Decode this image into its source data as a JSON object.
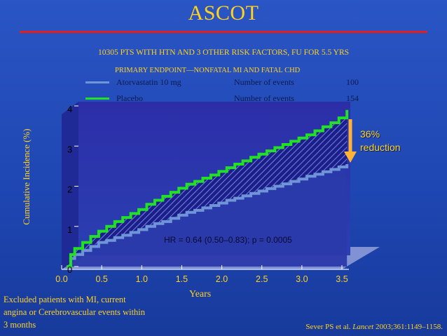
{
  "title": "ASCOT",
  "subtitle": "10305 PTS WITH HTN AND 3 OTHER RISK FACTORS, FU FOR 5.5 YRS",
  "endpoint": "PRIMARY ENDPOINT—NONFATAL MI AND FATAL CHD",
  "legend": [
    {
      "name": "Atorvastatin 10 mg",
      "events_label": "Number of events",
      "events": "100",
      "color": "#6f95d8"
    },
    {
      "name": "Placebo",
      "events_label": "Number of events",
      "events": "154",
      "color": "#22e023"
    }
  ],
  "reduction": {
    "line1": "36%",
    "line2": "reduction"
  },
  "hr_text": "HR = 0.64 (0.50–0.83); p = 0.0005",
  "footnote": {
    "line1": "Excluded patients with MI, current",
    "line2": "angina or Cerebrovascular events within",
    "line3": "3 months"
  },
  "citation": {
    "authors": "Sever PS et al. ",
    "journal": "Lancet",
    "ref": " 2003;361:1149–1158."
  },
  "chart_data": {
    "type": "line",
    "xlabel": "Years",
    "ylabel": "Cumulative Incidence (%)",
    "xlim": [
      0,
      3.5
    ],
    "ylim": [
      0,
      4
    ],
    "x_ticks": [
      "0.0",
      "0.5",
      "1.0",
      "1.5",
      "2.0",
      "2.5",
      "3.0",
      "3.5"
    ],
    "y_ticks": [
      "0",
      "1",
      "2",
      "3",
      "4"
    ],
    "series": [
      {
        "name": "Atorvastatin 10 mg",
        "x": [
          0,
          0.05,
          0.1,
          0.2,
          0.3,
          0.4,
          0.5,
          0.6,
          0.7,
          0.8,
          0.9,
          1.0,
          1.1,
          1.2,
          1.3,
          1.4,
          1.5,
          1.6,
          1.7,
          1.8,
          1.9,
          2.0,
          2.1,
          2.2,
          2.3,
          2.4,
          2.5,
          2.6,
          2.7,
          2.8,
          2.9,
          3.0,
          3.1,
          3.2,
          3.3,
          3.4,
          3.5
        ],
        "values": [
          0.0,
          0.2,
          0.3,
          0.4,
          0.5,
          0.6,
          0.65,
          0.72,
          0.78,
          0.85,
          0.92,
          1.0,
          1.07,
          1.12,
          1.2,
          1.28,
          1.35,
          1.4,
          1.46,
          1.52,
          1.58,
          1.65,
          1.7,
          1.76,
          1.82,
          1.88,
          1.94,
          2.0,
          2.06,
          2.12,
          2.18,
          2.25,
          2.3,
          2.36,
          2.42,
          2.48,
          2.55
        ]
      },
      {
        "name": "Placebo",
        "x": [
          0,
          0.05,
          0.1,
          0.2,
          0.3,
          0.4,
          0.5,
          0.6,
          0.7,
          0.8,
          0.9,
          1.0,
          1.1,
          1.2,
          1.3,
          1.4,
          1.5,
          1.6,
          1.7,
          1.8,
          1.9,
          2.0,
          2.1,
          2.2,
          2.3,
          2.4,
          2.5,
          2.6,
          2.7,
          2.8,
          2.9,
          3.0,
          3.1,
          3.2,
          3.3,
          3.4,
          3.5
        ],
        "values": [
          0.0,
          0.3,
          0.45,
          0.6,
          0.75,
          0.88,
          1.0,
          1.12,
          1.22,
          1.32,
          1.42,
          1.55,
          1.65,
          1.75,
          1.85,
          1.95,
          2.05,
          2.12,
          2.2,
          2.28,
          2.37,
          2.46,
          2.55,
          2.63,
          2.72,
          2.8,
          2.88,
          2.96,
          3.04,
          3.12,
          3.2,
          3.28,
          3.38,
          3.48,
          3.58,
          3.7,
          3.9
        ]
      }
    ],
    "colors": {
      "background": "#1f47b3",
      "plot_face": "#2a37a8",
      "plot_floor": "#8c9ad8",
      "placebo": "#22e023",
      "atorvastatin": "#6f95d8",
      "fill": "#0e1880",
      "tick_text": "#000000"
    }
  }
}
